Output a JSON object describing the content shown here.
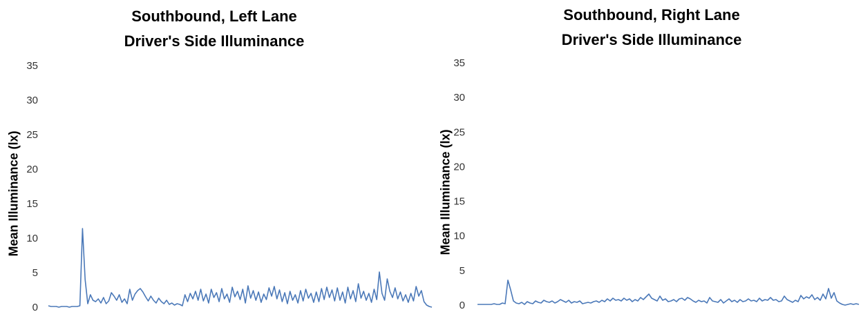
{
  "chart_data": [
    {
      "type": "line",
      "title": [
        "Southbound,  Left Lane",
        "Driver's Side Illuminance"
      ],
      "xlabel": "",
      "ylabel": "Mean Illuminance (lx)",
      "ylim": [
        0,
        35
      ],
      "yticks": [
        "0",
        "5",
        "10",
        "15",
        "20",
        "25",
        "30",
        "35"
      ],
      "grid": false,
      "color": "#4a78b8",
      "series": [
        {
          "values": [
            0.2,
            0.1,
            0.1,
            0.1,
            0.0,
            0.1,
            0.1,
            0.1,
            0.0,
            0.1,
            0.1,
            0.1,
            0.2,
            11.4,
            4.0,
            0.5,
            1.8,
            1.0,
            0.8,
            1.2,
            0.6,
            1.4,
            0.5,
            0.9,
            2.1,
            1.6,
            1.0,
            1.8,
            0.7,
            1.2,
            0.5,
            2.6,
            1.0,
            1.9,
            2.4,
            2.7,
            2.2,
            1.5,
            0.9,
            1.6,
            1.0,
            0.6,
            1.3,
            0.8,
            0.5,
            1.0,
            0.4,
            0.6,
            0.3,
            0.5,
            0.4,
            0.2,
            1.8,
            0.8,
            2.0,
            1.2,
            2.3,
            1.0,
            2.6,
            0.9,
            1.9,
            0.6,
            2.6,
            1.4,
            2.1,
            0.8,
            2.7,
            1.2,
            1.9,
            0.7,
            2.9,
            1.5,
            2.3,
            1.1,
            2.6,
            0.6,
            3.1,
            1.3,
            2.4,
            1.0,
            2.2,
            0.7,
            1.9,
            1.1,
            2.8,
            1.6,
            3.0,
            1.2,
            2.5,
            0.8,
            2.1,
            0.5,
            2.3,
            1.0,
            1.8,
            0.6,
            2.4,
            0.9,
            2.6,
            1.3,
            2.0,
            0.7,
            2.2,
            0.8,
            2.7,
            1.1,
            2.9,
            1.4,
            2.5,
            0.9,
            2.8,
            1.0,
            2.2,
            0.6,
            2.9,
            1.2,
            2.4,
            0.8,
            3.4,
            1.3,
            2.3,
            1.0,
            2.0,
            0.7,
            2.6,
            1.1,
            5.1,
            2.0,
            1.0,
            4.1,
            2.3,
            1.4,
            2.8,
            1.2,
            2.2,
            0.9,
            1.8,
            0.7,
            2.0,
            0.9,
            3.0,
            1.6,
            2.4,
            0.8,
            0.3,
            0.1,
            0.0
          ]
        }
      ]
    },
    {
      "type": "line",
      "title": [
        "Southbound,  Right Lane",
        "Driver's Side Illuminance"
      ],
      "xlabel": "",
      "ylabel": "Mean Illuminance (lx)",
      "ylim": [
        0,
        35
      ],
      "yticks": [
        "0",
        "5",
        "10",
        "15",
        "20",
        "25",
        "30",
        "35"
      ],
      "grid": false,
      "color": "#4a78b8",
      "series": [
        {
          "values": [
            0.1,
            0.1,
            0.1,
            0.1,
            0.1,
            0.1,
            0.2,
            0.1,
            0.1,
            0.3,
            0.2,
            3.6,
            2.2,
            0.6,
            0.3,
            0.2,
            0.4,
            0.1,
            0.5,
            0.3,
            0.2,
            0.6,
            0.4,
            0.3,
            0.7,
            0.5,
            0.4,
            0.6,
            0.3,
            0.5,
            0.8,
            0.6,
            0.4,
            0.7,
            0.3,
            0.5,
            0.4,
            0.6,
            0.2,
            0.3,
            0.4,
            0.3,
            0.5,
            0.6,
            0.4,
            0.7,
            0.5,
            0.9,
            0.6,
            1.0,
            0.7,
            0.8,
            0.6,
            1.0,
            0.7,
            0.9,
            0.5,
            0.8,
            0.6,
            1.1,
            0.8,
            1.2,
            1.6,
            1.0,
            0.8,
            0.6,
            1.3,
            0.7,
            0.9,
            0.5,
            0.6,
            0.8,
            0.5,
            0.9,
            1.0,
            0.7,
            1.1,
            0.9,
            0.6,
            0.4,
            0.7,
            0.5,
            0.6,
            0.3,
            1.1,
            0.6,
            0.5,
            0.4,
            0.8,
            0.3,
            0.6,
            0.9,
            0.5,
            0.7,
            0.4,
            0.8,
            0.5,
            0.6,
            0.9,
            0.6,
            0.7,
            0.5,
            1.0,
            0.6,
            0.8,
            0.7,
            1.1,
            0.7,
            0.8,
            0.5,
            0.6,
            1.3,
            0.8,
            0.6,
            0.4,
            0.7,
            0.5,
            1.4,
            0.9,
            1.2,
            1.0,
            1.5,
            0.8,
            1.1,
            0.7,
            1.6,
            0.9,
            2.4,
            1.0,
            1.8,
            0.6,
            0.3,
            0.1,
            0.0,
            0.1,
            0.2,
            0.1,
            0.2,
            0.1
          ]
        }
      ]
    }
  ]
}
